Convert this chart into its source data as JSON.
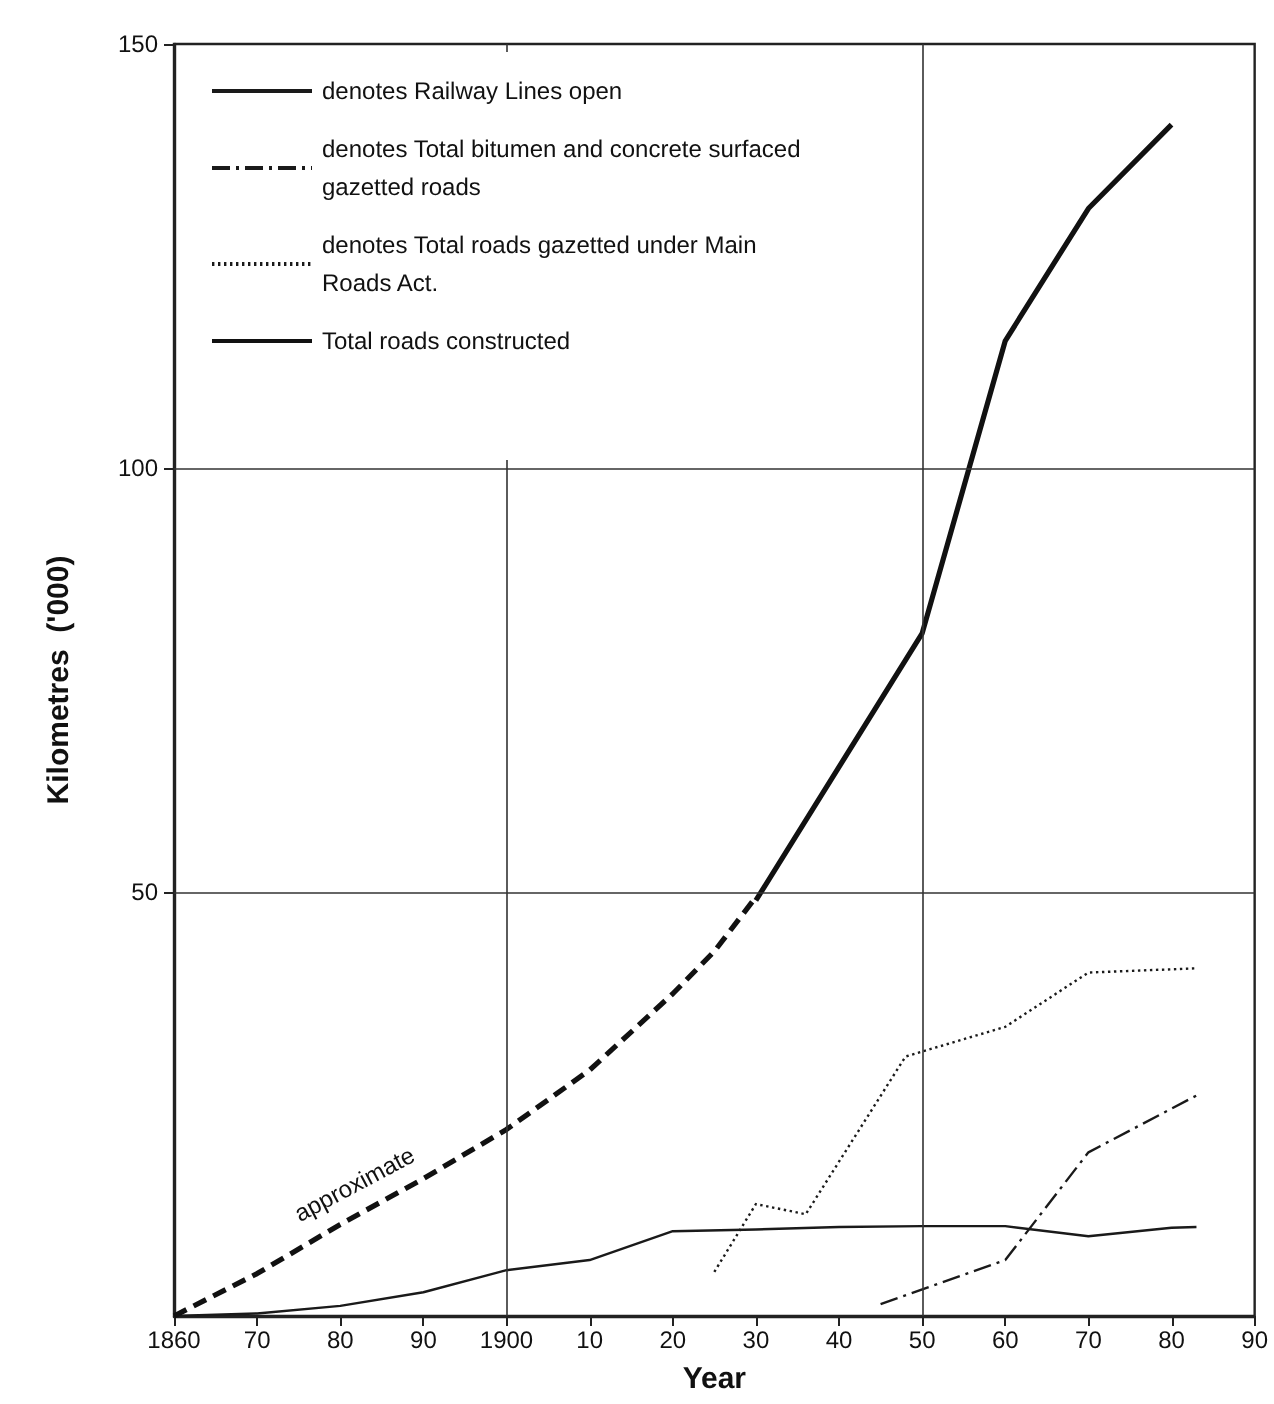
{
  "chart_data": {
    "type": "line",
    "xlabel": "Year",
    "ylabel": "Kilometres  ('000)",
    "xlim": [
      1860,
      1990
    ],
    "ylim": [
      0,
      150
    ],
    "xticks": [
      1860,
      {
        "value": 1870,
        "label": "70"
      },
      {
        "value": 1880,
        "label": "80"
      },
      {
        "value": 1890,
        "label": "90"
      },
      1900,
      {
        "value": 1910,
        "label": "10"
      },
      {
        "value": 1920,
        "label": "20"
      },
      {
        "value": 1930,
        "label": "30"
      },
      {
        "value": 1940,
        "label": "40"
      },
      {
        "value": 1950,
        "label": "50"
      },
      {
        "value": 1960,
        "label": "60"
      },
      {
        "value": 1970,
        "label": "70"
      },
      {
        "value": 1980,
        "label": "80"
      },
      {
        "value": 1990,
        "label": "90"
      }
    ],
    "yticks": [
      50,
      100,
      150
    ],
    "legend": "top left",
    "grid": false,
    "marker": "none",
    "ref_lines": [
      {
        "axis": "y",
        "value": 50,
        "color": "#333333"
      },
      {
        "axis": "y",
        "value": 100,
        "color": "#333333"
      },
      {
        "axis": "x",
        "value": 1900,
        "color": "#333333"
      },
      {
        "axis": "x",
        "value": 1950,
        "color": "#333333"
      }
    ],
    "annotations": [
      "approximate"
    ],
    "series": [
      {
        "name": "denotes Railway Lines open",
        "color": "#1a1a1a",
        "line_style": "solid",
        "x": [
          1860,
          1870,
          1880,
          1890,
          1900,
          1910,
          1920,
          1930,
          1940,
          1950,
          1960,
          1970,
          1980,
          1983
        ],
        "values": [
          0,
          0.3,
          1.2,
          2.8,
          5.4,
          6.6,
          10,
          10.2,
          10.5,
          10.6,
          10.6,
          9.4,
          10.4,
          10.5
        ]
      },
      {
        "name": "denotes Total bitumen and concrete surfaced gazetted roads",
        "color": "#1a1a1a",
        "line_style": "dashdot",
        "x": [
          1945,
          1960,
          1970,
          1983
        ],
        "values": [
          1.4,
          6.6,
          19.3,
          26
        ]
      },
      {
        "name": "denotes Total roads gazetted under Main Roads Act.",
        "color": "#1a1a1a",
        "line_style": "dotted",
        "x": [
          1925,
          1930,
          1936,
          1948,
          1960,
          1970,
          1983
        ],
        "values": [
          5.2,
          13.2,
          12,
          30.6,
          34.1,
          40.5,
          41
        ]
      },
      {
        "name": "Total roads constructed",
        "color": "#111111",
        "line_style": "solid",
        "x": [
          1930,
          1950,
          1960,
          1970,
          1980
        ],
        "values": [
          49,
          80.5,
          115,
          130.6,
          140.5
        ]
      },
      {
        "color": "#111111",
        "line_style": "dashed",
        "x": [
          1860,
          1870,
          1880,
          1890,
          1900,
          1910,
          1920,
          1925,
          1930
        ],
        "values": [
          0,
          5,
          10.8,
          16.2,
          22,
          29,
          38,
          43,
          49.4
        ]
      }
    ]
  }
}
